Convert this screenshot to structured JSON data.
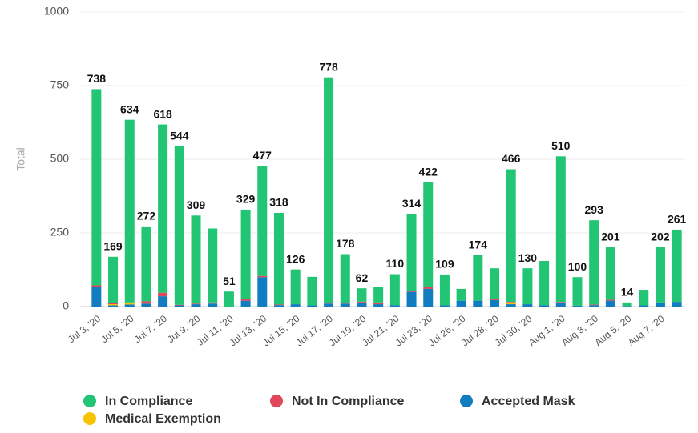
{
  "chart_data": {
    "type": "stacked_bar",
    "y_label": "Total",
    "categories": [
      "Jul 3, '20",
      null,
      "Jul 5, '20",
      null,
      "Jul 7, '20",
      null,
      "Jul 9, '20",
      null,
      "Jul 11, '20",
      null,
      "Jul 13, '20",
      null,
      "Jul 15, '20",
      null,
      "Jul 17, '20",
      null,
      "Jul 19, '20",
      null,
      "Jul 21, '20",
      null,
      "Jul 23, '20",
      null,
      "Jul 26, '20",
      null,
      "Jul 28, '20",
      null,
      "Jul 30, '20",
      null,
      "Aug 1, '20",
      null,
      "Aug 3, '20",
      null,
      "Aug 5, '20",
      null,
      "Aug 7, '20",
      null
    ],
    "series": [
      {
        "name": "In Compliance",
        "color": "#21c573",
        "values": [
          666,
          158,
          620,
          254,
          571,
          538,
          299,
          251,
          51,
          303,
          373,
          311,
          118,
          97,
          765,
          165,
          45,
          54,
          105,
          261,
          354,
          105,
          40,
          154,
          105,
          450,
          122,
          150,
          494,
          97,
          286,
          178,
          12,
          53,
          188,
          245
        ]
      },
      {
        "name": "Not In Compliance",
        "color": "#e0475b",
        "values": [
          6,
          3,
          3,
          8,
          12,
          2,
          2,
          4,
          0,
          6,
          4,
          2,
          0,
          0,
          3,
          3,
          3,
          6,
          0,
          3,
          8,
          0,
          0,
          0,
          3,
          2,
          0,
          0,
          2,
          0,
          2,
          3,
          0,
          0,
          2,
          0
        ]
      },
      {
        "name": "Accepted Mask",
        "color": "#127cc1",
        "values": [
          66,
          4,
          7,
          10,
          35,
          4,
          8,
          10,
          0,
          20,
          100,
          5,
          8,
          4,
          10,
          10,
          14,
          8,
          5,
          50,
          60,
          4,
          20,
          20,
          22,
          8,
          8,
          5,
          14,
          3,
          5,
          20,
          2,
          4,
          12,
          16
        ]
      },
      {
        "name": "Medical Exemption",
        "color": "#f7c200",
        "values": [
          0,
          4,
          4,
          0,
          0,
          0,
          0,
          0,
          0,
          0,
          0,
          0,
          0,
          0,
          0,
          0,
          0,
          0,
          0,
          0,
          0,
          0,
          0,
          0,
          0,
          6,
          0,
          0,
          0,
          0,
          0,
          0,
          0,
          0,
          0,
          0
        ]
      }
    ],
    "total_labels": [
      "738",
      "169",
      "634",
      "272",
      "618",
      "544",
      "309",
      null,
      "51",
      "329",
      "477",
      "318",
      "126",
      null,
      "778",
      "178",
      "62",
      null,
      "110",
      "314",
      "422",
      "109",
      null,
      "174",
      null,
      "466",
      "130",
      null,
      "510",
      "100",
      "293",
      "201",
      "14",
      null,
      "202",
      "261"
    ],
    "ylim": [
      0,
      1000
    ],
    "yticks": [
      0,
      250,
      500,
      750,
      1000
    ],
    "grid": true
  }
}
